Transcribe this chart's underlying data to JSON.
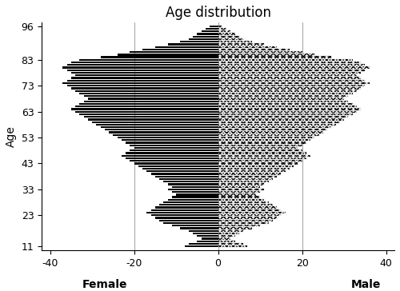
{
  "title": "Age distribution",
  "xlabel_left": "Female",
  "xlabel_right": "Male",
  "ylabel": "Age",
  "xlim": [
    -42,
    42
  ],
  "ylim": [
    9.5,
    97.5
  ],
  "xticks": [
    -40,
    -20,
    0,
    20,
    40
  ],
  "xticklabels": [
    "-40",
    "-20",
    "0",
    "20",
    "40"
  ],
  "yticks": [
    11,
    23,
    33,
    43,
    53,
    63,
    73,
    83,
    96
  ],
  "ages": [
    11,
    12,
    13,
    14,
    15,
    16,
    17,
    18,
    19,
    20,
    21,
    22,
    23,
    24,
    25,
    26,
    27,
    28,
    29,
    30,
    31,
    32,
    33,
    34,
    35,
    36,
    37,
    38,
    39,
    40,
    41,
    42,
    43,
    44,
    45,
    46,
    47,
    48,
    49,
    50,
    51,
    52,
    53,
    54,
    55,
    56,
    57,
    58,
    59,
    60,
    61,
    62,
    63,
    64,
    65,
    66,
    67,
    68,
    69,
    70,
    71,
    72,
    73,
    74,
    75,
    76,
    77,
    78,
    79,
    80,
    81,
    82,
    83,
    84,
    85,
    86,
    87,
    88,
    89,
    90,
    91,
    92,
    93,
    94,
    95,
    96
  ],
  "female": [
    -8,
    -7,
    -5,
    -4,
    -5,
    -6,
    -7,
    -9,
    -11,
    -13,
    -14,
    -15,
    -16,
    -17,
    -16,
    -15,
    -14,
    -13,
    -12,
    -11,
    -10,
    -11,
    -12,
    -11,
    -12,
    -13,
    -14,
    -15,
    -16,
    -17,
    -18,
    -19,
    -20,
    -21,
    -22,
    -23,
    -22,
    -21,
    -20,
    -21,
    -22,
    -23,
    -24,
    -25,
    -26,
    -27,
    -28,
    -29,
    -30,
    -31,
    -32,
    -33,
    -34,
    -35,
    -34,
    -33,
    -32,
    -31,
    -32,
    -33,
    -34,
    -35,
    -36,
    -37,
    -36,
    -35,
    -34,
    -35,
    -36,
    -37,
    -36,
    -35,
    -33,
    -28,
    -24,
    -21,
    -18,
    -15,
    -12,
    -9,
    -7,
    -6,
    -5,
    -4,
    -3,
    -2
  ],
  "male": [
    7,
    6,
    4,
    3,
    4,
    5,
    6,
    8,
    10,
    12,
    13,
    14,
    15,
    16,
    15,
    14,
    13,
    12,
    11,
    10,
    9,
    10,
    11,
    10,
    11,
    12,
    13,
    14,
    15,
    16,
    17,
    18,
    19,
    20,
    21,
    22,
    21,
    20,
    19,
    20,
    21,
    22,
    23,
    24,
    25,
    26,
    27,
    28,
    29,
    30,
    31,
    32,
    33,
    34,
    33,
    32,
    31,
    30,
    31,
    32,
    33,
    34,
    35,
    36,
    35,
    34,
    33,
    34,
    35,
    36,
    35,
    34,
    32,
    27,
    23,
    20,
    17,
    14,
    11,
    8,
    6,
    5,
    4,
    3,
    2,
    1
  ],
  "bar_height": 0.7,
  "female_color": "#000000",
  "grid_color": "#aaaaaa",
  "grid_lw": 0.8,
  "title_fontsize": 12,
  "label_fontsize": 10,
  "tick_fontsize": 9,
  "figsize": [
    5.0,
    3.64
  ],
  "dpi": 100
}
